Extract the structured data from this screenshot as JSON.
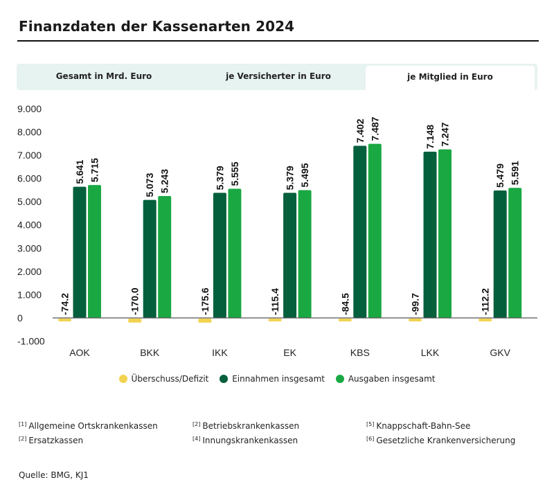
{
  "title": "Finanzdaten der Kassenarten 2024",
  "tabs": [
    {
      "label": "Gesamt in Mrd. Euro",
      "active": false
    },
    {
      "label": "je Versicherter in Euro",
      "active": false
    },
    {
      "label": "je Mitglied in Euro",
      "active": true
    }
  ],
  "colors": {
    "surplus": "#f2d34f",
    "income": "#045f3c",
    "expenses": "#1aa843",
    "axis": "#555555"
  },
  "chart_data": {
    "type": "bar",
    "title": "Finanzdaten der Kassenarten 2024",
    "xlabel": "",
    "ylabel": "",
    "ylim": [
      -1000,
      9000
    ],
    "yticks": [
      9000,
      8000,
      7000,
      6000,
      5000,
      4000,
      3000,
      2000,
      1000,
      0,
      -1000
    ],
    "ytick_labels": [
      "9.000",
      "8.000",
      "7.000",
      "6.000",
      "5.000",
      "4.000",
      "3.000",
      "2.000",
      "1.000",
      "0",
      "-1.000"
    ],
    "categories": [
      "AOK",
      "BKK",
      "IKK",
      "EK",
      "KBS",
      "LKK",
      "GKV"
    ],
    "series": [
      {
        "name": "Überschuss/Defizit",
        "color": "#f2d34f",
        "values": [
          -74.2,
          -170.0,
          -175.6,
          -115.4,
          -84.5,
          -99.7,
          -112.2
        ],
        "labels": [
          "-74.2",
          "-170.0",
          "-175.6",
          "-115.4",
          "-84.5",
          "-99.7",
          "-112.2"
        ]
      },
      {
        "name": "Einnahmen insgesamt",
        "color": "#045f3c",
        "values": [
          5641,
          5073,
          5379,
          5379,
          7402,
          7148,
          5479
        ],
        "labels": [
          "5.641",
          "5.073",
          "5.379",
          "5.379",
          "7.402",
          "7.148",
          "5.479"
        ]
      },
      {
        "name": "Ausgaben insgesamt",
        "color": "#1aa843",
        "values": [
          5715,
          5243,
          5555,
          5495,
          7487,
          7247,
          5591
        ],
        "labels": [
          "5.715",
          "5.243",
          "5.555",
          "5.495",
          "7.487",
          "7.247",
          "5.591"
        ]
      }
    ],
    "grid": false,
    "legend_position": "bottom"
  },
  "footnotes": [
    {
      "mark": "[1]",
      "text": "Allgemeine Ortskrankenkassen"
    },
    {
      "mark": "[2]",
      "text": "Betriebskrankenkassen"
    },
    {
      "mark": "[5]",
      "text": "Knappschaft-Bahn-See"
    },
    {
      "mark": "[2]",
      "text": "Ersatzkassen"
    },
    {
      "mark": "[4]",
      "text": "Innungskrankenkassen"
    },
    {
      "mark": "[6]",
      "text": "Gesetzliche Krankenversicherung"
    }
  ],
  "source": "Quelle: BMG,  KJ1"
}
